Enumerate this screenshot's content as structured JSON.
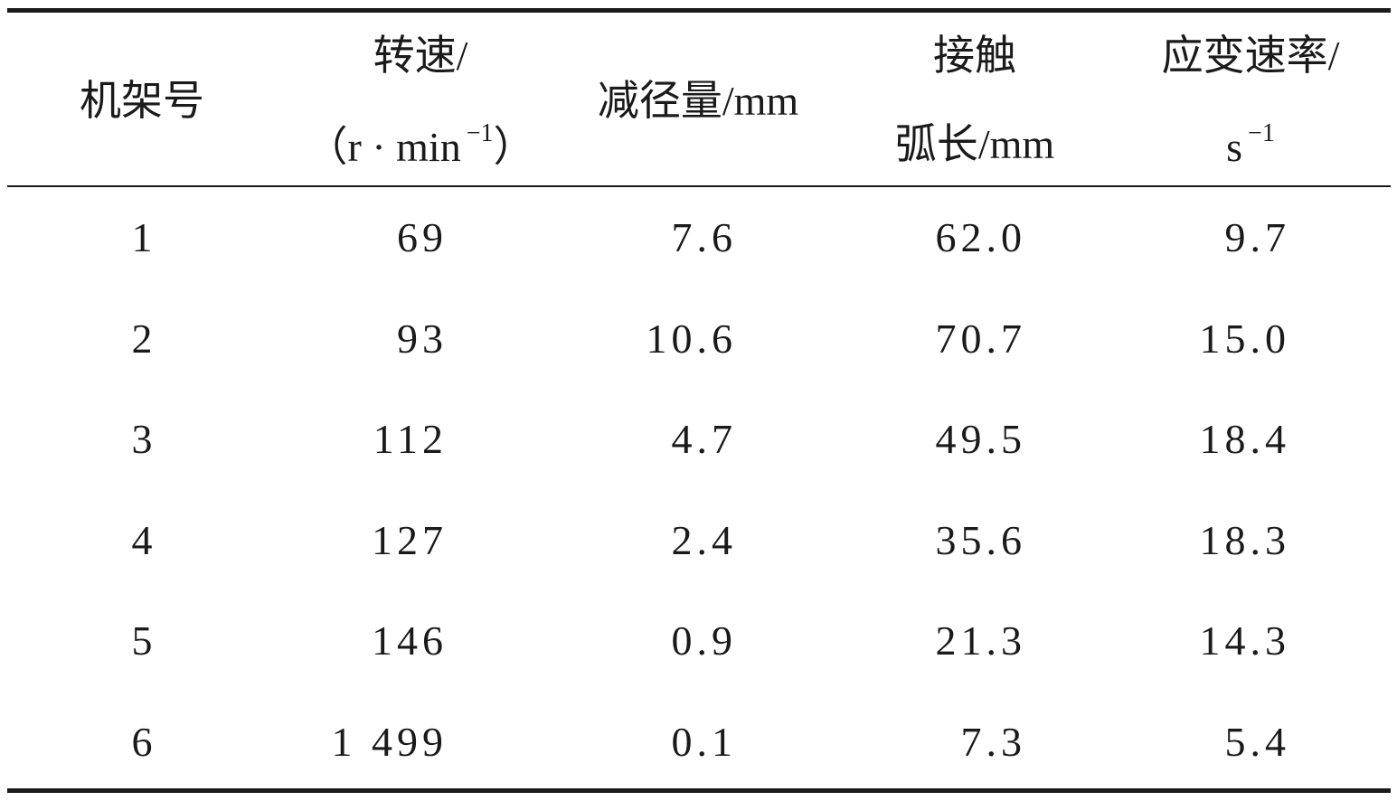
{
  "table": {
    "header": [
      [
        [
          {
            "text": "机架号"
          }
        ]
      ],
      [
        [
          {
            "text": "转速/"
          }
        ],
        [
          {
            "text": "（r · min"
          },
          {
            "sup": "−1"
          },
          {
            "text": "）"
          }
        ]
      ],
      [
        [
          {
            "text": "减径量/mm"
          }
        ]
      ],
      [
        [
          {
            "text": "接触"
          }
        ],
        [
          {
            "text": "弧长/mm"
          }
        ]
      ],
      [
        [
          {
            "text": "应变速率/"
          }
        ],
        [
          {
            "text": "s"
          },
          {
            "sup": "−1"
          }
        ]
      ]
    ],
    "rows": [
      [
        "1",
        "69",
        "7.6",
        "62.0",
        "9.7"
      ],
      [
        "2",
        "93",
        "10.6",
        "70.7",
        "15.0"
      ],
      [
        "3",
        "112",
        "4.7",
        "49.5",
        "18.4"
      ],
      [
        "4",
        "127",
        "2.4",
        "35.6",
        "18.3"
      ],
      [
        "5",
        "146",
        "0.9",
        "21.3",
        "14.3"
      ],
      [
        "6",
        "1 499",
        "0.1",
        "7.3",
        "5.4"
      ]
    ]
  }
}
